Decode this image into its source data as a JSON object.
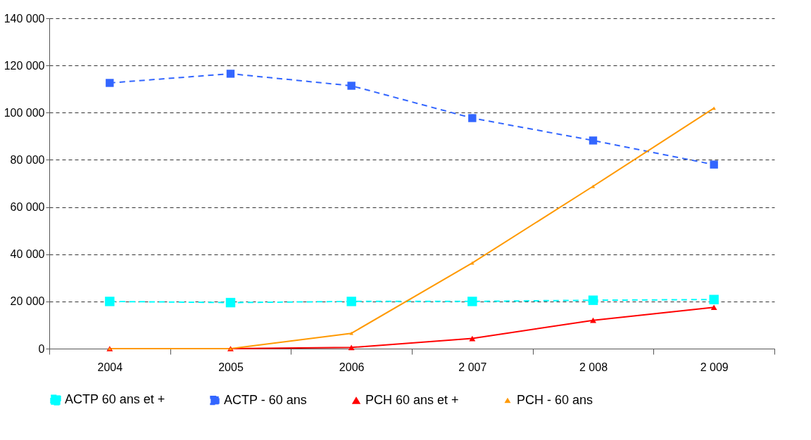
{
  "chart_data": {
    "type": "line",
    "categories": [
      "2004",
      "2005",
      "2006",
      "2 007",
      "2 008",
      "2 009"
    ],
    "series": [
      {
        "name": "ACTP 60 ans et +",
        "color": "#00ffff",
        "marker": "square",
        "line_style": "dashed",
        "values": [
          20000,
          19500,
          20000,
          20000,
          20500,
          20800
        ]
      },
      {
        "name": "ACTP - 60 ans",
        "color": "#3366ff",
        "marker": "square",
        "line_style": "dashed",
        "values": [
          112600,
          116500,
          111400,
          97700,
          88200,
          78000
        ]
      },
      {
        "name": "PCH 60 ans et +",
        "color": "#ff0000",
        "marker": "triangle",
        "line_style": "solid",
        "values": [
          0,
          0,
          500,
          4300,
          12000,
          17500
        ]
      },
      {
        "name": "PCH - 60 ans",
        "color": "#ff9900",
        "marker": "triangle",
        "line_style": "solid",
        "values": [
          0,
          0,
          6500,
          36300,
          68800,
          101900
        ]
      }
    ],
    "ylim": [
      0,
      140000
    ],
    "yticks": [
      {
        "value": 0,
        "label": "0"
      },
      {
        "value": 20000,
        "label": "20 000"
      },
      {
        "value": 40000,
        "label": "40 000"
      },
      {
        "value": 60000,
        "label": "60 000"
      },
      {
        "value": 80000,
        "label": "80 000"
      },
      {
        "value": 100000,
        "label": "100 000"
      },
      {
        "value": 120000,
        "label": "120 000"
      },
      {
        "value": 140000,
        "label": "140 000"
      }
    ],
    "grid": "y",
    "legend": "bottom"
  }
}
